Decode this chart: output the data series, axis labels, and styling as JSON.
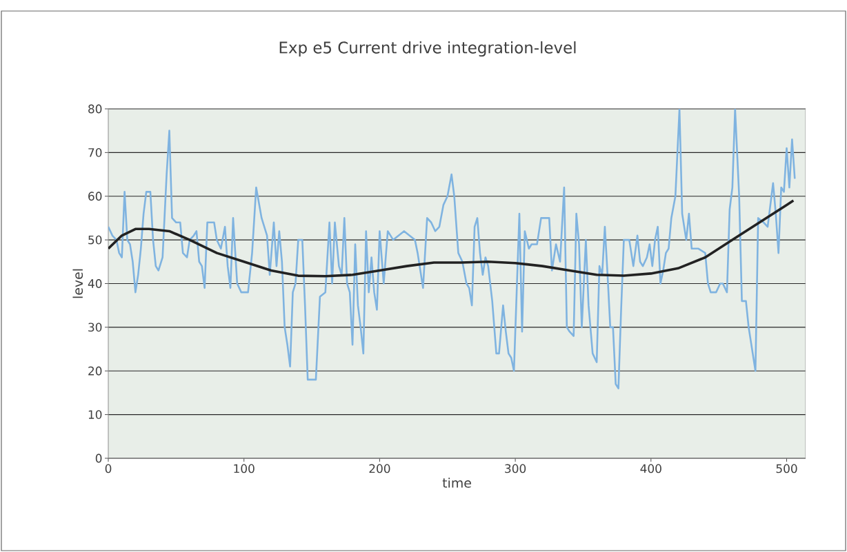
{
  "chart_data": {
    "type": "line",
    "title": "Exp e5 Current drive integration-level",
    "xlabel": "time",
    "ylabel": "level",
    "xlim": [
      0,
      514
    ],
    "xticks": [
      0,
      100,
      200,
      300,
      400,
      500
    ],
    "ylim": [
      0,
      80
    ],
    "yticks": [
      0,
      10,
      20,
      30,
      40,
      50,
      60,
      70,
      80
    ],
    "grid": "y",
    "marker": "none",
    "line_style": "solid",
    "series": [
      {
        "color": "#7fb3e0",
        "x": [
          0,
          3,
          6,
          8,
          10,
          12,
          14,
          16,
          18,
          20,
          22,
          24,
          26,
          28,
          31,
          33,
          35,
          37,
          40,
          43,
          45,
          47,
          50,
          53,
          55,
          58,
          60,
          63,
          65,
          67,
          69,
          71,
          73,
          78,
          80,
          83,
          86,
          88,
          90,
          92,
          95,
          98,
          103,
          106,
          109,
          113,
          117,
          119,
          122,
          124,
          126,
          128,
          130,
          132,
          134,
          136,
          138,
          140,
          143,
          145,
          147,
          153,
          156,
          160,
          163,
          165,
          167,
          170,
          172,
          174,
          176,
          178,
          180,
          182,
          184,
          186,
          188,
          190,
          192,
          194,
          196,
          198,
          200,
          203,
          206,
          210,
          214,
          218,
          222,
          226,
          228,
          232,
          235,
          238,
          241,
          244,
          247,
          250,
          253,
          255,
          258,
          261,
          264,
          266,
          268,
          270,
          272,
          274,
          276,
          278,
          280,
          283,
          286,
          288,
          291,
          293,
          295,
          297,
          299,
          301,
          303,
          305,
          307,
          310,
          312,
          316,
          319,
          325,
          327,
          330,
          333,
          336,
          338,
          340,
          343,
          345,
          347,
          349,
          352,
          354,
          357,
          360,
          362,
          364,
          366,
          368,
          370,
          372,
          374,
          376,
          378,
          380,
          384,
          387,
          390,
          392,
          394,
          397,
          399,
          401,
          403,
          405,
          407,
          409,
          411,
          413,
          415,
          418,
          421,
          423,
          426,
          428,
          430,
          435,
          440,
          442,
          444,
          448,
          451,
          453,
          456,
          458,
          460,
          462,
          465,
          467,
          470,
          472,
          475,
          477,
          479,
          483,
          486,
          488,
          490,
          492,
          494,
          496,
          498,
          500,
          502,
          504,
          506
        ],
        "values": [
          53,
          51,
          50,
          47,
          46,
          61,
          50,
          49,
          45,
          38,
          42,
          48,
          56,
          61,
          61,
          50,
          44,
          43,
          46,
          65,
          75,
          55,
          54,
          54,
          47,
          46,
          50,
          51,
          52,
          45,
          44,
          39,
          54,
          54,
          50,
          48,
          53,
          44,
          39,
          55,
          40,
          38,
          38,
          47,
          62,
          55,
          51,
          42,
          54,
          44,
          52,
          45,
          30,
          26,
          21,
          38,
          40,
          50,
          50,
          35,
          18,
          18,
          37,
          38,
          54,
          40,
          54,
          44,
          42,
          55,
          40,
          38,
          26,
          49,
          35,
          30,
          24,
          52,
          38,
          46,
          38,
          34,
          52,
          40,
          52,
          50,
          51,
          52,
          51,
          50,
          47,
          39,
          55,
          54,
          52,
          53,
          58,
          60,
          65,
          60,
          47,
          45,
          40,
          39,
          35,
          53,
          55,
          47,
          42,
          46,
          44,
          36,
          24,
          24,
          35,
          29,
          24,
          23,
          20,
          38,
          56,
          29,
          52,
          48,
          49,
          49,
          55,
          55,
          43,
          49,
          45,
          62,
          30,
          29,
          28,
          56,
          49,
          30,
          50,
          35,
          24,
          22,
          44,
          42,
          53,
          42,
          30,
          30,
          17,
          16,
          34,
          50,
          50,
          44,
          51,
          45,
          44,
          46,
          49,
          44,
          50,
          53,
          40,
          43,
          47,
          48,
          55,
          60,
          80,
          56,
          50,
          56,
          48,
          48,
          47,
          40,
          38,
          38,
          40,
          40,
          38,
          57,
          62,
          80,
          60,
          36,
          36,
          30,
          24,
          20,
          55,
          54,
          53,
          58,
          63,
          56,
          47,
          62,
          61,
          71,
          62,
          73,
          64
        ]
      },
      {
        "type": "line",
        "color": "#222222",
        "x": [
          0,
          10,
          20,
          30,
          45,
          60,
          80,
          100,
          120,
          140,
          160,
          180,
          200,
          220,
          240,
          260,
          280,
          300,
          320,
          340,
          360,
          380,
          400,
          420,
          440,
          460,
          480,
          500,
          505
        ],
        "values": [
          48,
          51,
          52.5,
          52.5,
          52,
          50,
          47,
          45,
          43,
          41.8,
          41.7,
          42,
          43,
          44,
          44.8,
          44.8,
          45,
          44.7,
          44,
          43,
          42,
          41.8,
          42.3,
          43.5,
          46,
          50,
          54,
          58,
          59
        ]
      }
    ]
  }
}
